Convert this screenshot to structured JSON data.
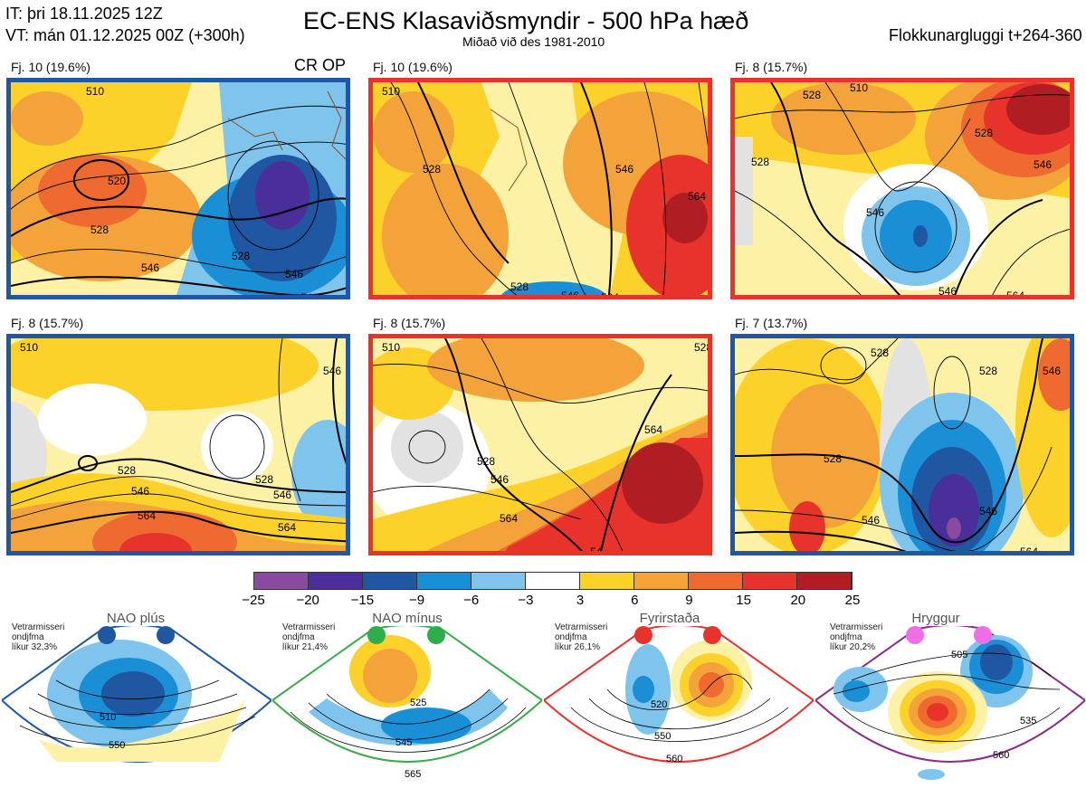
{
  "header": {
    "init_time": "IT: þri 18.11.2025 12Z",
    "valid_time": "VT: mán 01.12.2025 00Z  (+300h)",
    "title": "EC-ENS Klasaviðsmyndir - 500 hPa hæð",
    "subtitle": "Miðað við des 1981-2010",
    "cluster_window": "Flokkunargluggi t+264-360"
  },
  "panels": [
    {
      "label": "Fj. 10 (19.6%)",
      "tag": "CR OP",
      "border_color": "#1f57a3",
      "contour_labels": [
        "510",
        "520",
        "528",
        "528",
        "546",
        "546",
        "54"
      ]
    },
    {
      "label": "Fj. 10 (19.6%)",
      "tag": "",
      "border_color": "#e8332c",
      "contour_labels": [
        "510",
        "528",
        "546",
        "564",
        "528",
        "546",
        "564"
      ]
    },
    {
      "label": "Fj. 8 (15.7%)",
      "tag": "",
      "border_color": "#e8332c",
      "contour_labels": [
        "528",
        "510",
        "528",
        "546",
        "528",
        "546",
        "546",
        "564"
      ]
    },
    {
      "label": "Fj. 8 (15.7%)",
      "tag": "",
      "border_color": "#1f57a3",
      "contour_labels": [
        "510",
        "546",
        "528",
        "546",
        "528",
        "546",
        "564",
        "564"
      ]
    },
    {
      "label": "Fj. 8 (15.7%)",
      "tag": "",
      "border_color": "#e8332c",
      "contour_labels": [
        "510",
        "528",
        "528",
        "546",
        "564",
        "564",
        "54"
      ]
    },
    {
      "label": "Fj. 7 (13.7%)",
      "tag": "",
      "border_color": "#1f57a3",
      "contour_labels": [
        "528",
        "528",
        "546",
        "528",
        "546",
        "564",
        "546"
      ]
    }
  ],
  "colorbar": {
    "ticks": [
      "−25",
      "−20",
      "−15",
      "−9",
      "−6",
      "−3",
      "3",
      "6",
      "9",
      "15",
      "20",
      "25"
    ],
    "colors": [
      "#8a4aa0",
      "#4a2f9a",
      "#1f57a3",
      "#1a8fd6",
      "#7ec4ec",
      "#ffffff",
      "#fdf1a6",
      "#fbd12a",
      "#f4a23a",
      "#ee6a30",
      "#e8332c",
      "#b01e23"
    ]
  },
  "regimes": [
    {
      "name": "NAO plús",
      "note_lines": [
        "Vetrarmisseri",
        "ondjfma",
        "líkur 32,3%"
      ],
      "border_color": "#1f57a3",
      "dot_color": "#1f57a3",
      "contour_labels": [
        "510",
        "550"
      ]
    },
    {
      "name": "NAO mínus",
      "note_lines": [
        "Vetrarmisseri",
        "ondjfma",
        "líkur 21,4%"
      ],
      "border_color": "#3aaa4a",
      "dot_color": "#2eae4b",
      "contour_labels": [
        "525",
        "545",
        "565"
      ]
    },
    {
      "name": "Fyrirstaða",
      "note_lines": [
        "Vetrarmisseri",
        "ondjfma",
        "líkur 26,1%"
      ],
      "border_color": "#e8332c",
      "dot_color": "#e8332c",
      "contour_labels": [
        "520",
        "550",
        "560"
      ]
    },
    {
      "name": "Hryggur",
      "note_lines": [
        "Vetrarmisseri",
        "ondjfma",
        "líkur 20,2%"
      ],
      "border_color": "#8b2b8b",
      "dot_color": "#ee6ee8",
      "contour_labels": [
        "505",
        "535",
        "560"
      ]
    }
  ]
}
